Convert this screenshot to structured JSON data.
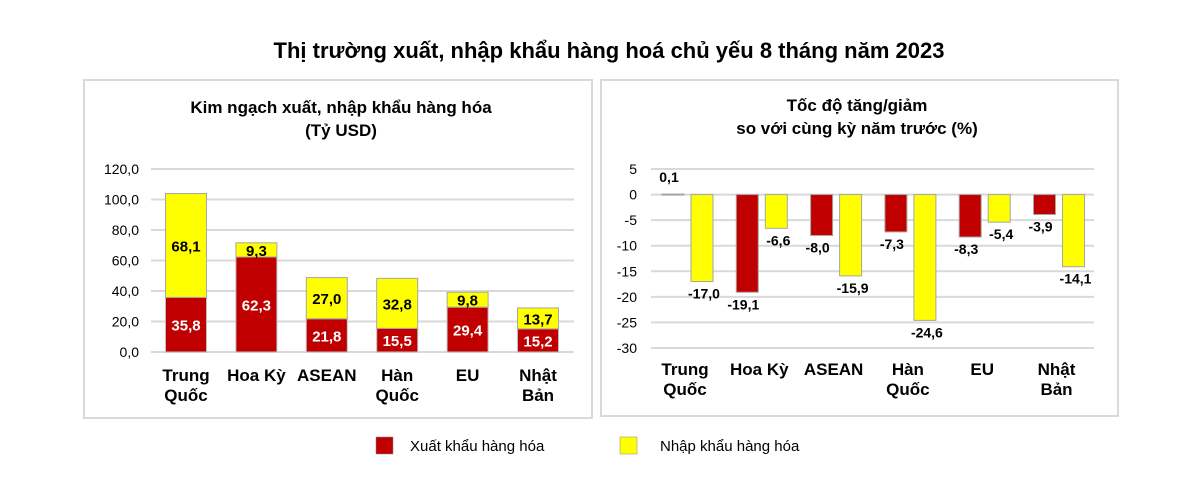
{
  "title": "Thị trường xuất, nhập khẩu hàng hoá chủ yếu 8 tháng năm 2023",
  "colors": {
    "export": "#c00000",
    "import": "#ffff00",
    "grid": "#d9d9d9",
    "panel_border": "#d9d9d9"
  },
  "legend": [
    {
      "label": "Xuất khẩu hàng hóa",
      "color": "#c00000"
    },
    {
      "label": "Nhập khẩu hàng hóa",
      "color": "#ffff00"
    }
  ],
  "chart_data": [
    {
      "type": "bar",
      "stacked": true,
      "title": [
        "Kim ngạch xuất, nhập khẩu hàng hóa",
        "(Tỷ USD)"
      ],
      "categories": [
        [
          "Trung",
          "Quốc"
        ],
        [
          "Hoa Kỳ"
        ],
        [
          "ASEAN"
        ],
        [
          "Hàn",
          "Quốc"
        ],
        [
          "EU"
        ],
        [
          "Nhật",
          "Bản"
        ]
      ],
      "ylim": [
        0,
        120
      ],
      "yticks": [
        "0,0",
        "20,0",
        "40,0",
        "60,0",
        "80,0",
        "100,0",
        "120,0"
      ],
      "grid": true,
      "series": [
        {
          "name": "Xuất khẩu hàng hóa",
          "values": [
            35.8,
            62.3,
            21.8,
            15.5,
            29.4,
            15.2
          ],
          "labels": [
            "35,8",
            "62,3",
            "21,8",
            "15,5",
            "29,4",
            "15,2"
          ]
        },
        {
          "name": "Nhập khẩu hàng hóa",
          "values": [
            68.1,
            9.3,
            27.0,
            32.8,
            9.8,
            13.7
          ],
          "labels": [
            "68,1",
            "9,3",
            "27,0",
            "32,8",
            "9,8",
            "13,7"
          ]
        }
      ]
    },
    {
      "type": "bar",
      "stacked": false,
      "title": [
        "Tốc độ tăng/giảm",
        "so với cùng kỳ năm trước (%)"
      ],
      "categories": [
        [
          "Trung",
          "Quốc"
        ],
        [
          "Hoa Kỳ"
        ],
        [
          "ASEAN"
        ],
        [
          "Hàn",
          "Quốc"
        ],
        [
          "EU"
        ],
        [
          "Nhật",
          "Bản"
        ]
      ],
      "ylim": [
        -30,
        5
      ],
      "yticks": [
        "-30",
        "-25",
        "-20",
        "-15",
        "-10",
        "-5",
        "0",
        "5"
      ],
      "grid": true,
      "series": [
        {
          "name": "Xuất khẩu hàng hóa",
          "values": [
            0.1,
            -19.1,
            -8.0,
            -7.3,
            -8.3,
            -3.9
          ],
          "labels": [
            "0,1",
            "-19,1",
            "-8,0",
            "-7,3",
            "-8,3",
            "-3,9"
          ]
        },
        {
          "name": "Nhập khẩu hàng hóa",
          "values": [
            -17.0,
            -6.6,
            -15.9,
            -24.6,
            -5.4,
            -14.1
          ],
          "labels": [
            "-17,0",
            "-6,6",
            "-15,9",
            "-24,6",
            "-5,4",
            "-14,1"
          ]
        }
      ]
    }
  ]
}
